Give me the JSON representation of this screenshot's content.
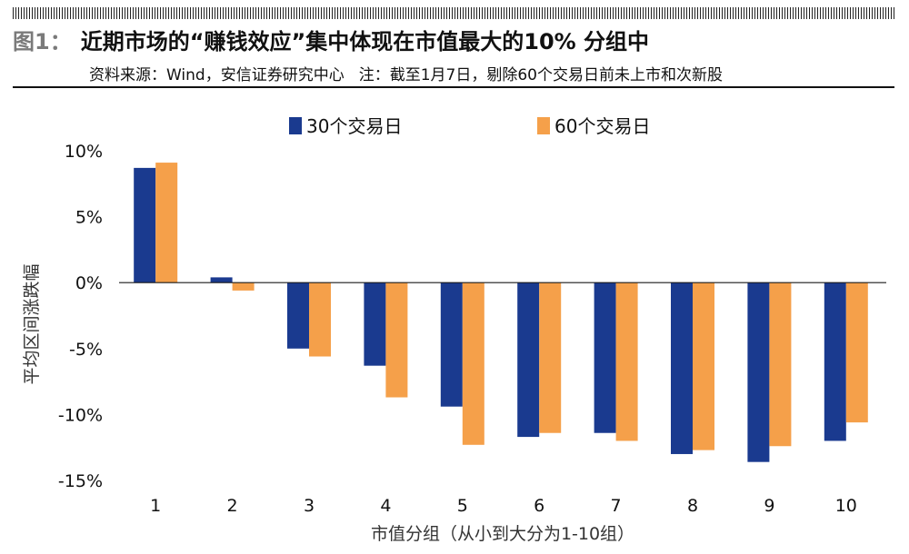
{
  "header": {
    "figure_label": "图1：",
    "title": "近期市场的“赚钱效应”集中体现在市值最大的10% 分组中",
    "source": "资料来源：Wind，安信证券研究中心",
    "note": "注：截至1月7日，剔除60个交易日前未上市和次新股"
  },
  "colors": {
    "series_30": "#1a3a8f",
    "series_60": "#f5a04a"
  },
  "chart_data": {
    "type": "bar",
    "title": "近期市场的“赚钱效应”集中体现在市值最大的10% 分组中",
    "xlabel": "市值分组（从小到大分为1-10组）",
    "ylabel": "平均区间涨跌幅",
    "categories": [
      "1",
      "2",
      "3",
      "4",
      "5",
      "6",
      "7",
      "8",
      "9",
      "10"
    ],
    "series": [
      {
        "name": "30个交易日",
        "values": [
          8.7,
          0.4,
          -5.0,
          -6.3,
          -9.4,
          -11.7,
          -11.4,
          -13.0,
          -13.6,
          -12.0
        ]
      },
      {
        "name": "60个交易日",
        "values": [
          9.1,
          -0.6,
          -5.6,
          -8.7,
          -12.3,
          -11.4,
          -12.0,
          -12.7,
          -12.4,
          -10.6
        ]
      }
    ],
    "ylim": [
      -15,
      10
    ],
    "yticks": [
      10,
      5,
      0,
      -5,
      -10,
      -15
    ],
    "ytick_labels": [
      "10%",
      "5%",
      "0%",
      "-5%",
      "-10%",
      "-15%"
    ],
    "legend_position": "top-center",
    "grid": false
  }
}
